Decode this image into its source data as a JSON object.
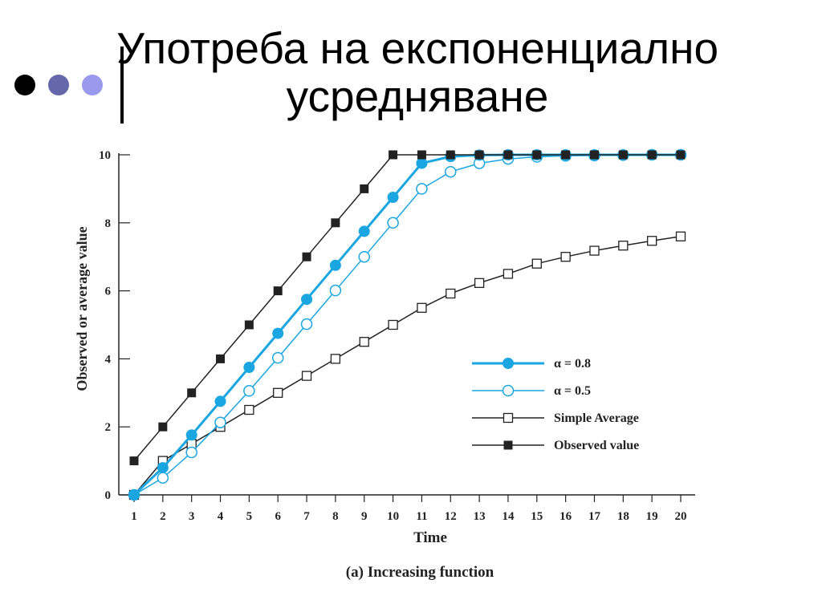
{
  "slide": {
    "title": "Употреба на експоненциално усредняване",
    "bullet_colors": [
      "#000000",
      "#6666aa",
      "#9999ee"
    ]
  },
  "chart_data": {
    "type": "line",
    "caption": "(a) Increasing function",
    "xlabel": "Time",
    "ylabel": "Observed or average value",
    "xlim": [
      1,
      20
    ],
    "ylim": [
      0,
      10
    ],
    "x_ticks": [
      1,
      2,
      3,
      4,
      5,
      6,
      7,
      8,
      9,
      10,
      11,
      12,
      13,
      14,
      15,
      16,
      17,
      18,
      19,
      20
    ],
    "y_ticks": [
      0,
      2,
      4,
      6,
      8,
      10
    ],
    "legend_position": "lower-right",
    "x": [
      1,
      2,
      3,
      4,
      5,
      6,
      7,
      8,
      9,
      10,
      11,
      12,
      13,
      14,
      15,
      16,
      17,
      18,
      19,
      20
    ],
    "series": [
      {
        "name": "α = 0.8",
        "color": "#1aa6e0",
        "marker": "filled-circle",
        "line_width": 3,
        "values": [
          0,
          0.8,
          1.76,
          2.75,
          3.75,
          4.75,
          5.75,
          6.75,
          7.75,
          8.75,
          9.75,
          9.95,
          9.99,
          10,
          10,
          10,
          10,
          10,
          10,
          10
        ]
      },
      {
        "name": "α = 0.5",
        "color": "#1aa6e0",
        "marker": "open-circle",
        "line_width": 1.5,
        "values": [
          0,
          0.5,
          1.25,
          2.13,
          3.06,
          4.03,
          5.02,
          6.01,
          7.0,
          8.0,
          9.0,
          9.5,
          9.75,
          9.88,
          9.94,
          9.97,
          9.98,
          9.99,
          10,
          10
        ]
      },
      {
        "name": "Simple Average",
        "color": "#222222",
        "marker": "open-square",
        "line_width": 1.5,
        "values": [
          0,
          1.0,
          1.5,
          2.0,
          2.5,
          3.0,
          3.5,
          4.0,
          4.5,
          5.0,
          5.5,
          5.92,
          6.23,
          6.5,
          6.8,
          7.0,
          7.18,
          7.33,
          7.47,
          7.6
        ]
      },
      {
        "name": "Observed value",
        "color": "#222222",
        "marker": "filled-square",
        "line_width": 1.5,
        "values": [
          1,
          2,
          3,
          4,
          5,
          6,
          7,
          8,
          9,
          10,
          10,
          10,
          10,
          10,
          10,
          10,
          10,
          10,
          10,
          10
        ]
      }
    ]
  }
}
